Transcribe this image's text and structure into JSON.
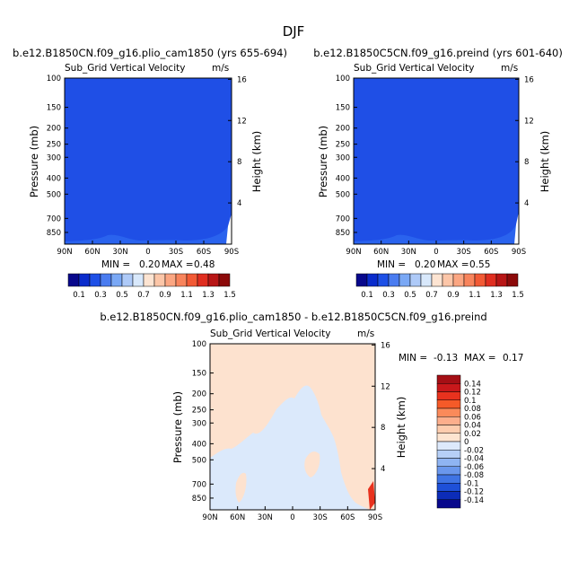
{
  "page": {
    "season": "DJF"
  },
  "colors": {
    "blue_field": "#1f4fe6",
    "blue_bump": "#2a63ee",
    "pale_blue": "#dbe9fb",
    "pale_peach": "#fde2cf",
    "white": "#ffffff"
  },
  "chart_data": [
    {
      "type": "heatmap",
      "title": "b.e12.B1850CN.f09_g16.plio_cam1850 (yrs 655-694)",
      "subtitle": "Sub_Grid Vertical Velocity",
      "units": "m/s",
      "xlabel": "",
      "ylabel": "Pressure (mb)",
      "ylabel_right": "Height (km)",
      "x_ticks": [
        "90N",
        "60N",
        "30N",
        "0",
        "30S",
        "60S",
        "90S"
      ],
      "y_ticks": [
        "100",
        "150",
        "200",
        "250",
        "300",
        "400",
        "500",
        "700",
        "850"
      ],
      "y2_ticks": [
        "16",
        "12",
        "8",
        "4"
      ],
      "ylim": [
        1000,
        100
      ],
      "y_scale": "log",
      "min_label": "MIN =",
      "min_value": "0.20",
      "max_label": "MAX =",
      "max_value": "0.48",
      "colorbar_levels": [
        "0.1",
        "0.3",
        "0.5",
        "0.7",
        "0.9",
        "1.1",
        "1.3",
        "1.5"
      ],
      "colorbar_colors": [
        "#08088c",
        "#0a2ccc",
        "#1e50e6",
        "#4a7cf0",
        "#7aa8f5",
        "#aecaf8",
        "#d8e8fb",
        "#fde4d2",
        "#fcc6a8",
        "#fba682",
        "#f8845c",
        "#f25a35",
        "#e02e20",
        "#b81616",
        "#8c0a0a"
      ]
    },
    {
      "type": "heatmap",
      "title": "b.e12.B1850C5CN.f09_g16.preind (yrs 601-640)",
      "subtitle": "Sub_Grid Vertical Velocity",
      "units": "m/s",
      "xlabel": "",
      "ylabel": "Pressure (mb)",
      "ylabel_right": "Height (km)",
      "x_ticks": [
        "90N",
        "60N",
        "30N",
        "0",
        "30S",
        "60S",
        "90S"
      ],
      "y_ticks": [
        "100",
        "150",
        "200",
        "250",
        "300",
        "400",
        "500",
        "700",
        "850"
      ],
      "y2_ticks": [
        "16",
        "12",
        "8",
        "4"
      ],
      "ylim": [
        1000,
        100
      ],
      "y_scale": "log",
      "min_label": "MIN =",
      "min_value": "0.20",
      "max_label": "MAX =",
      "max_value": "0.55",
      "colorbar_levels": [
        "0.1",
        "0.3",
        "0.5",
        "0.7",
        "0.9",
        "1.1",
        "1.3",
        "1.5"
      ],
      "colorbar_colors": [
        "#08088c",
        "#0a2ccc",
        "#1e50e6",
        "#4a7cf0",
        "#7aa8f5",
        "#aecaf8",
        "#d8e8fb",
        "#fde4d2",
        "#fcc6a8",
        "#fba682",
        "#f8845c",
        "#f25a35",
        "#e02e20",
        "#b81616",
        "#8c0a0a"
      ]
    },
    {
      "type": "heatmap",
      "title": "b.e12.B1850CN.f09_g16.plio_cam1850 - b.e12.B1850C5CN.f09_g16.preind",
      "subtitle": "Sub_Grid Vertical Velocity",
      "units": "m/s",
      "xlabel": "",
      "ylabel": "Pressure (mb)",
      "ylabel_right": "Height (km)",
      "x_ticks": [
        "90N",
        "60N",
        "30N",
        "0",
        "30S",
        "60S",
        "90S"
      ],
      "y_ticks": [
        "100",
        "150",
        "200",
        "250",
        "300",
        "400",
        "500",
        "700",
        "850"
      ],
      "y2_ticks": [
        "16",
        "12",
        "8",
        "4"
      ],
      "ylim": [
        1000,
        100
      ],
      "y_scale": "log",
      "min_label": "MIN =",
      "min_value": "-0.13",
      "max_label": "MAX =",
      "max_value": "0.17",
      "colorbar_levels": [
        "0.14",
        "0.12",
        "0.1",
        "0.08",
        "0.06",
        "0.04",
        "0.02",
        "0",
        "-0.02",
        "-0.04",
        "-0.06",
        "-0.08",
        "-0.1",
        "-0.12",
        "-0.14"
      ],
      "colorbar_colors": [
        "#a50f15",
        "#c8181b",
        "#e8321e",
        "#f55a28",
        "#fa8a5a",
        "#fcae8c",
        "#fdccae",
        "#fde4d0",
        "#dde9fb",
        "#b6cff7",
        "#8fb4f2",
        "#6a97ec",
        "#3f74e4",
        "#1e50d8",
        "#0c2cb8",
        "#08088c"
      ]
    }
  ]
}
